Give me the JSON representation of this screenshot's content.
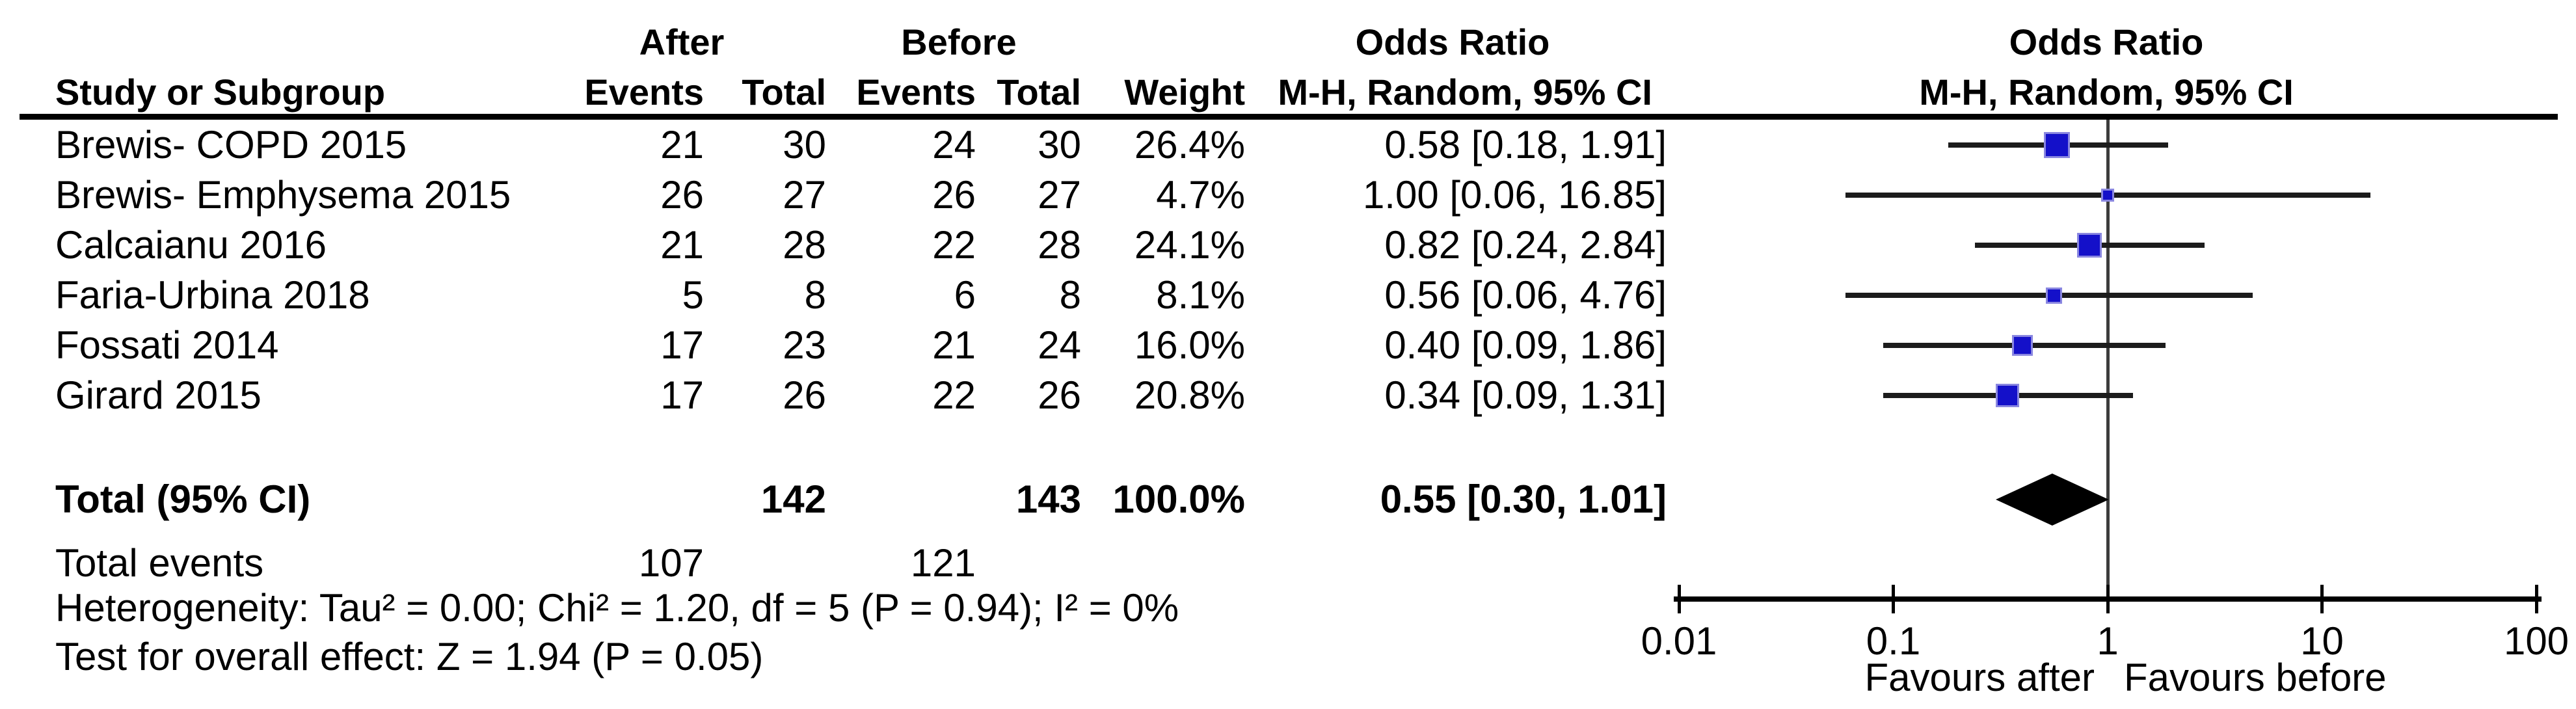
{
  "table": {
    "group_headers": {
      "after": "After",
      "before": "Before",
      "odds_ratio": "Odds Ratio",
      "odds_ratio_plot": "Odds Ratio"
    },
    "col_headers": {
      "study": "Study or Subgroup",
      "after_events": "Events",
      "after_total": "Total",
      "before_events": "Events",
      "before_total": "Total",
      "weight": "Weight",
      "mh_ci": "M-H, Random, 95% CI",
      "mh_ci_plot": "M-H, Random, 95% CI"
    },
    "rows": [
      {
        "study": "Brewis- COPD 2015",
        "after_events": "21",
        "after_total": "30",
        "before_events": "24",
        "before_total": "30",
        "weight": "26.4%",
        "or_ci": "0.58 [0.18, 1.91]"
      },
      {
        "study": "Brewis- Emphysema 2015",
        "after_events": "26",
        "after_total": "27",
        "before_events": "26",
        "before_total": "27",
        "weight": "4.7%",
        "or_ci": "1.00 [0.06, 16.85]"
      },
      {
        "study": "Calcaianu 2016",
        "after_events": "21",
        "after_total": "28",
        "before_events": "22",
        "before_total": "28",
        "weight": "24.1%",
        "or_ci": "0.82 [0.24, 2.84]"
      },
      {
        "study": "Faria-Urbina 2018",
        "after_events": "5",
        "after_total": "8",
        "before_events": "6",
        "before_total": "8",
        "weight": "8.1%",
        "or_ci": "0.56 [0.06, 4.76]"
      },
      {
        "study": "Fossati 2014",
        "after_events": "17",
        "after_total": "23",
        "before_events": "21",
        "before_total": "24",
        "weight": "16.0%",
        "or_ci": "0.40 [0.09, 1.86]"
      },
      {
        "study": "Girard 2015",
        "after_events": "17",
        "after_total": "26",
        "before_events": "22",
        "before_total": "26",
        "weight": "20.8%",
        "or_ci": "0.34 [0.09, 1.31]"
      }
    ],
    "total_row": {
      "label": "Total (95% CI)",
      "after_total": "142",
      "before_total": "143",
      "weight": "100.0%",
      "or_ci": "0.55 [0.30, 1.01]"
    },
    "total_events": {
      "label": "Total events",
      "after": "107",
      "before": "121"
    },
    "heterogeneity": "Heterogeneity: Tau² = 0.00; Chi² = 1.20, df = 5 (P = 0.94); I² = 0%",
    "overall_effect": "Test for overall effect: Z = 1.94 (P = 0.05)"
  },
  "chart_data": {
    "type": "forest",
    "effect_measure": "Odds Ratio",
    "method": "M-H, Random, 95% CI",
    "x_scale": "log10",
    "xlim": [
      0.01,
      100
    ],
    "x_ticks": [
      0.01,
      0.1,
      1,
      10,
      100
    ],
    "x_tick_labels": [
      "0.01",
      "0.1",
      "1",
      "10",
      "100"
    ],
    "favours_left": "Favours after",
    "favours_right": "Favours before",
    "studies": [
      {
        "name": "Brewis- COPD 2015",
        "or": 0.58,
        "ci_low": 0.18,
        "ci_high": 1.91,
        "weight_pct": 26.4
      },
      {
        "name": "Brewis- Emphysema 2015",
        "or": 1.0,
        "ci_low": 0.06,
        "ci_high": 16.85,
        "weight_pct": 4.7
      },
      {
        "name": "Calcaianu 2016",
        "or": 0.82,
        "ci_low": 0.24,
        "ci_high": 2.84,
        "weight_pct": 24.1
      },
      {
        "name": "Faria-Urbina 2018",
        "or": 0.56,
        "ci_low": 0.06,
        "ci_high": 4.76,
        "weight_pct": 8.1
      },
      {
        "name": "Fossati 2014",
        "or": 0.4,
        "ci_low": 0.09,
        "ci_high": 1.86,
        "weight_pct": 16.0
      },
      {
        "name": "Girard 2015",
        "or": 0.34,
        "ci_low": 0.09,
        "ci_high": 1.31,
        "weight_pct": 20.8
      }
    ],
    "total": {
      "or": 0.55,
      "ci_low": 0.3,
      "ci_high": 1.01
    }
  },
  "colors": {
    "text": "#000000",
    "background": "#ffffff",
    "marker_fill": "#1410c9",
    "marker_border": "#8a87e0",
    "ci_line": "#1c1c1c",
    "center_line": "#3c3c3c",
    "axis": "#000000",
    "diamond": "#000000"
  }
}
